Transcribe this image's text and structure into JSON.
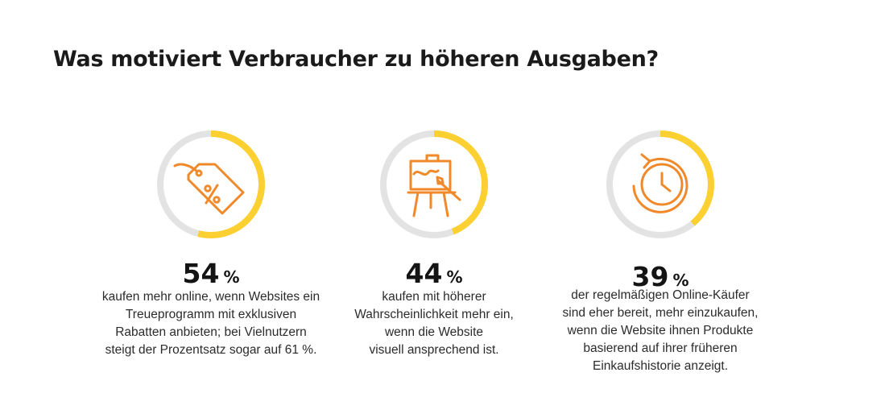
{
  "title": "Was motiviert Verbraucher zu höheren Ausgaben?",
  "colors": {
    "ring_track": "#e3e3e3",
    "ring_fill": "#fdd031",
    "icon": "#f0892a",
    "text": "#1a1a1a"
  },
  "chart_data": {
    "type": "donut",
    "percent_sign": "%",
    "items": [
      {
        "value": 54,
        "value_label": "54",
        "icon": "price-tag-percent-icon",
        "description": [
          "kaufen mehr online, wenn Websites ein",
          "Treueprogramm mit exklusiven",
          "Rabatten anbieten; bei Vielnutzern",
          "steigt der Prozentsatz sogar auf 61 %."
        ]
      },
      {
        "value": 44,
        "value_label": "44",
        "icon": "easel-paintbrush-icon",
        "description": [
          "kaufen mit höherer",
          "Wahrscheinlichkeit mehr ein,",
          "wenn die Website",
          "visuell ansprechend ist."
        ]
      },
      {
        "value": 39,
        "value_label": "39",
        "icon": "clock-history-icon",
        "description": [
          "der regelmäßigen Online-Käufer",
          "sind eher bereit, mehr einzukaufen,",
          "wenn die Website ihnen Produkte",
          "basierend auf ihrer früheren",
          "Einkaufshistorie anzeigt."
        ]
      }
    ]
  }
}
